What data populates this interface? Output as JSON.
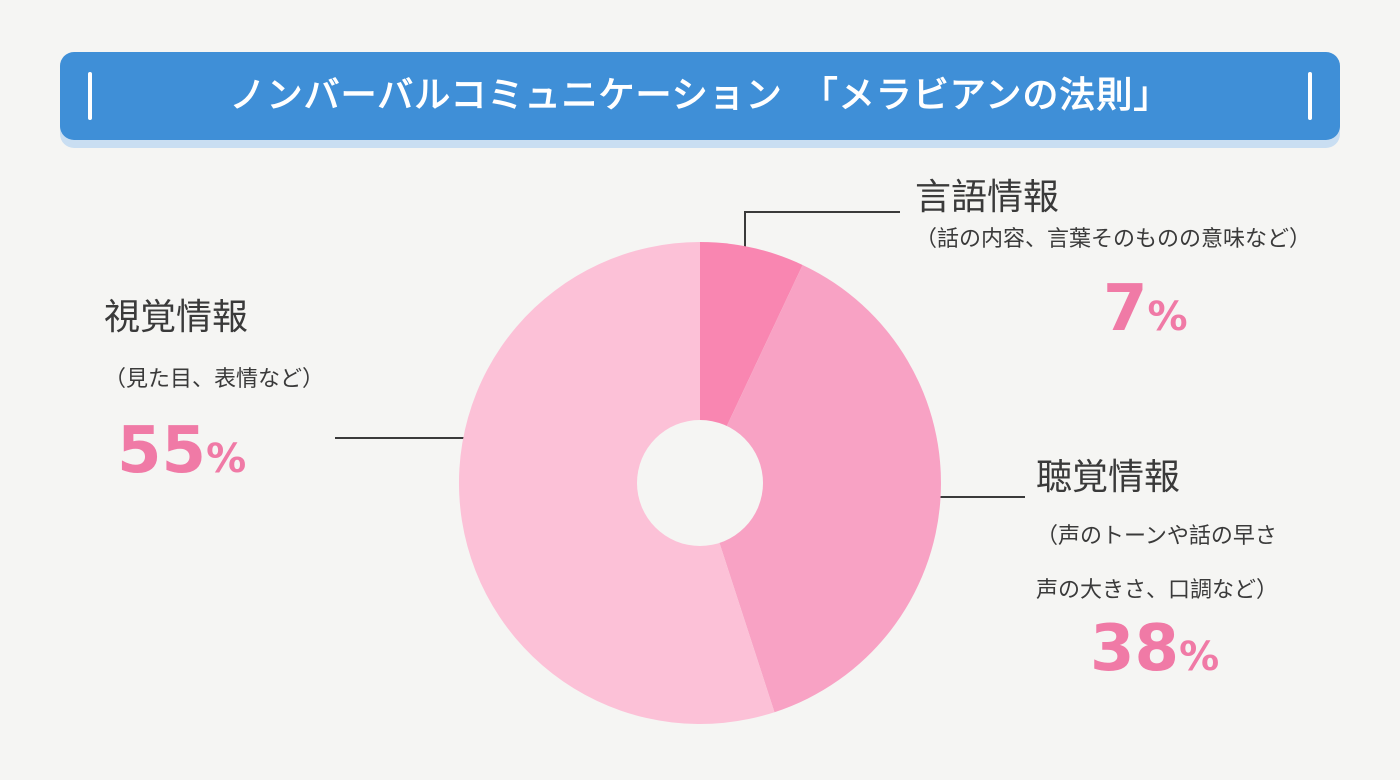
{
  "title": {
    "text": "ノンバーバルコミュニケーション　「メラビアンの法則」",
    "color": "#3f8fd7"
  },
  "chart_data": {
    "type": "pie",
    "donut": true,
    "start_angle_deg": 0,
    "slices": [
      {
        "label": "言語情報",
        "description": "（話の内容、言葉そのものの意味など）",
        "value": 7,
        "display": "7",
        "unit": "%",
        "color": "#f986b1"
      },
      {
        "label": "聴覚情報",
        "description_lines": [
          "（声のトーンや話の早さ",
          "声の大きさ、口調など）"
        ],
        "value": 38,
        "display": "38",
        "unit": "%",
        "color": "#f8a2c4"
      },
      {
        "label": "視覚情報",
        "description": "（見た目、表情など）",
        "value": 55,
        "display": "55",
        "unit": "%",
        "color": "#fcc1d7"
      }
    ],
    "percent_color": "#f07aa6"
  }
}
